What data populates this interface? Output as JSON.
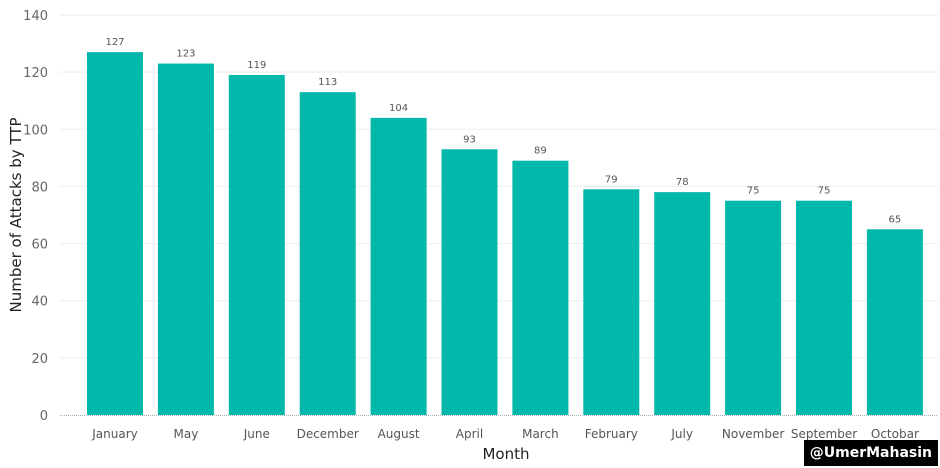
{
  "chart_data": {
    "type": "bar",
    "categories": [
      "January",
      "May",
      "June",
      "December",
      "August",
      "April",
      "March",
      "February",
      "July",
      "November",
      "September",
      "Octobar"
    ],
    "values": [
      127,
      123,
      119,
      113,
      104,
      93,
      89,
      79,
      78,
      75,
      75,
      65
    ],
    "xlabel": "Month",
    "ylabel": "Number of Attacks by TTP",
    "ylim": [
      0,
      140
    ],
    "yticks": [
      0,
      20,
      40,
      60,
      80,
      100,
      120,
      140
    ],
    "grid": true,
    "bar_color": "#01B8AA",
    "data_labels": true
  },
  "watermark": "@UmerMahasin"
}
